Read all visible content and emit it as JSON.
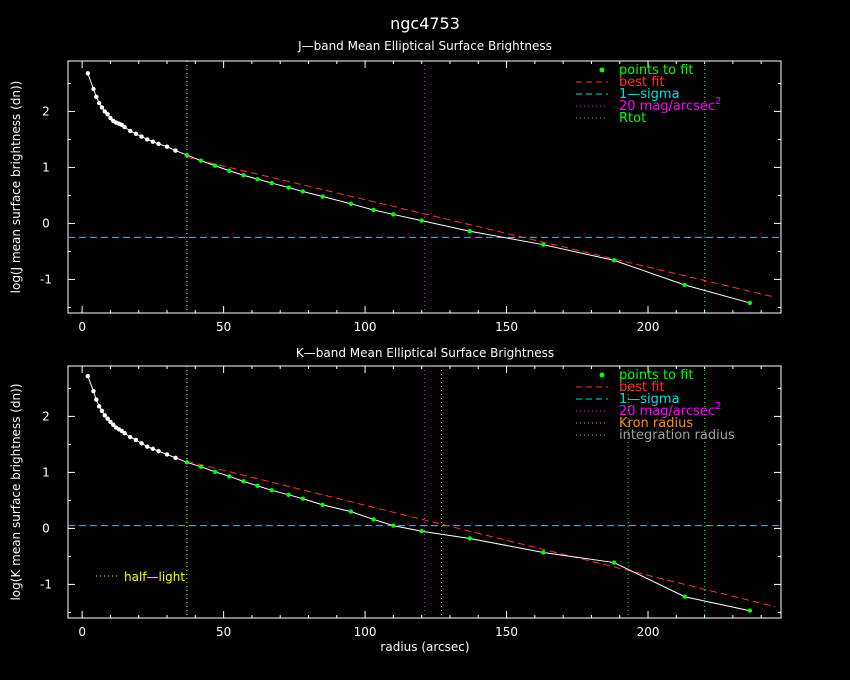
{
  "title": "ngc4753",
  "xlabel": "radius (arcsec)",
  "colors": {
    "background": "#000000",
    "axes": "#ffffff",
    "profile": "#ffffff",
    "fit_points": "#00ff00",
    "best_fit": "#ff3030",
    "sigma": "#00e0e0",
    "mag20": "#ff00ff",
    "rtot": "#00ff00",
    "kron": "#ff8c1a",
    "integration": "#a0a0a0",
    "half_light": "#ffff00"
  },
  "chart_data": [
    {
      "type": "line",
      "title": "J—band Mean Elliptical Surface Brightness",
      "ylabel": "log(J mean surface brightness (dn))",
      "xlabel": "",
      "xlim": [
        -5,
        247
      ],
      "ylim": [
        -1.6,
        2.9
      ],
      "xticks": [
        0,
        50,
        100,
        150,
        200
      ],
      "yticks": [
        -1,
        0,
        1,
        2
      ],
      "legend_position": "top-right",
      "legend": [
        {
          "label": "points to fit",
          "style": "dot",
          "color": "#00ff00"
        },
        {
          "label": "best fit",
          "style": "dash",
          "color": "#ff3030"
        },
        {
          "label": "1—sigma",
          "style": "dash",
          "color": "#00e0e0"
        },
        {
          "label": "20 mag/arcsec",
          "sup": "2",
          "style": "dot-line",
          "color": "#ff00ff"
        },
        {
          "label": "Rtot",
          "style": "dot-line",
          "color": "#00ff00"
        }
      ],
      "profile": {
        "x": [
          2,
          4,
          5,
          6,
          7,
          8,
          9,
          10,
          11,
          12,
          13,
          14,
          15,
          17,
          19,
          21,
          23,
          25,
          27,
          30,
          33,
          37,
          42,
          47,
          52,
          57,
          62,
          67,
          73,
          78,
          85,
          95,
          103,
          110,
          120,
          137,
          163,
          188,
          213,
          236
        ],
        "y": [
          2.68,
          2.4,
          2.26,
          2.15,
          2.07,
          2.0,
          1.95,
          1.88,
          1.83,
          1.8,
          1.78,
          1.76,
          1.72,
          1.65,
          1.6,
          1.55,
          1.5,
          1.46,
          1.42,
          1.37,
          1.3,
          1.22,
          1.12,
          1.03,
          0.94,
          0.86,
          0.79,
          0.72,
          0.64,
          0.57,
          0.48,
          0.35,
          0.24,
          0.16,
          0.05,
          -0.14,
          -0.38,
          -0.66,
          -1.1,
          -1.42
        ]
      },
      "fit_points_x": [
        37,
        42,
        47,
        52,
        57,
        62,
        67,
        73,
        78,
        85,
        95,
        103,
        110,
        120,
        137,
        163,
        188,
        213,
        236
      ],
      "best_fit": {
        "x": [
          37,
          245
        ],
        "y": [
          1.18,
          -1.32
        ]
      },
      "sigma_level": -0.25,
      "mag20_radius": 121,
      "rtot_radius": 220,
      "half_light_radius": 37
    },
    {
      "type": "line",
      "title": "K—band Mean Elliptical Surface Brightness",
      "ylabel": "log(K mean surface brightness (dn))",
      "xlabel": "radius (arcsec)",
      "xlim": [
        -5,
        247
      ],
      "ylim": [
        -1.6,
        2.9
      ],
      "xticks": [
        0,
        50,
        100,
        150,
        200
      ],
      "yticks": [
        -1,
        0,
        1,
        2
      ],
      "legend_position": "top-right",
      "legend": [
        {
          "label": "points to fit",
          "style": "dot",
          "color": "#00ff00"
        },
        {
          "label": "best fit",
          "style": "dash",
          "color": "#ff3030"
        },
        {
          "label": "1—sigma",
          "style": "dash",
          "color": "#00e0e0"
        },
        {
          "label": "20 mag/arcsec",
          "sup": "2",
          "style": "dot-line",
          "color": "#ff00ff"
        },
        {
          "label": "Kron radius",
          "style": "dot-line",
          "color": "#ff8c1a"
        },
        {
          "label": "integration radius",
          "style": "dot-line",
          "color": "#a0a0a0"
        }
      ],
      "annotation": {
        "label": "half—light",
        "color": "#ffff00"
      },
      "profile": {
        "x": [
          2,
          4,
          5,
          6,
          7,
          8,
          9,
          10,
          11,
          12,
          13,
          14,
          15,
          17,
          19,
          21,
          23,
          25,
          27,
          30,
          33,
          37,
          42,
          47,
          52,
          57,
          62,
          67,
          73,
          78,
          85,
          95,
          103,
          110,
          120,
          137,
          163,
          188,
          213,
          236
        ],
        "y": [
          2.72,
          2.45,
          2.3,
          2.18,
          2.1,
          2.02,
          1.96,
          1.9,
          1.85,
          1.8,
          1.77,
          1.74,
          1.7,
          1.63,
          1.58,
          1.52,
          1.46,
          1.42,
          1.38,
          1.32,
          1.26,
          1.18,
          1.1,
          1.01,
          0.93,
          0.84,
          0.76,
          0.68,
          0.6,
          0.53,
          0.42,
          0.3,
          0.16,
          0.05,
          -0.05,
          -0.18,
          -0.43,
          -0.61,
          -1.22,
          -1.47
        ]
      },
      "fit_points_x": [
        37,
        42,
        47,
        52,
        57,
        62,
        67,
        73,
        78,
        85,
        95,
        103,
        110,
        120,
        137,
        163,
        188,
        213,
        236
      ],
      "best_fit": {
        "x": [
          37,
          245
        ],
        "y": [
          1.2,
          -1.4
        ]
      },
      "sigma_level": 0.05,
      "mag20_radius": 121,
      "kron_radius": 127,
      "integration_radius": 193,
      "rtot_radius": 220,
      "half_light_radius": 37
    }
  ]
}
